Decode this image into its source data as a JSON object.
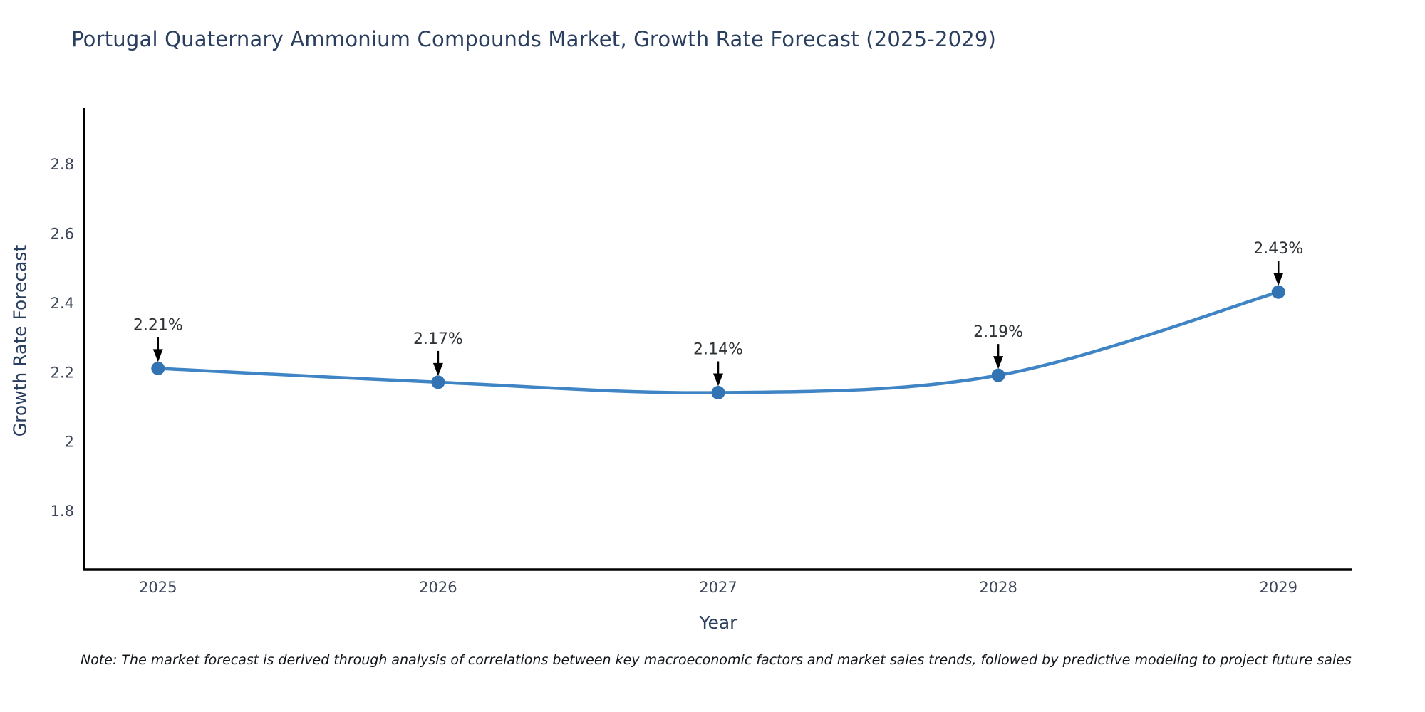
{
  "header": {
    "title": "Portugal Quaternary Ammonium Compounds Market, Growth Rate Forecast (2025-2029)"
  },
  "footnote": "Note: The market forecast is derived through analysis of correlations between key macroeconomic factors and market sales trends, followed by predictive modeling to project future sales",
  "chart_data": {
    "type": "line",
    "title": "Portugal Quaternary Ammonium Compounds Market, Growth Rate Forecast (2025-2029)",
    "x": [
      2025,
      2026,
      2027,
      2028,
      2029
    ],
    "values": [
      2.21,
      2.17,
      2.14,
      2.19,
      2.43
    ],
    "point_labels": [
      "2.21%",
      "2.17%",
      "2.14%",
      "2.19%",
      "2.43%"
    ],
    "xlabel": "Year",
    "ylabel": "Growth Rate Forecast",
    "xtick_labels": [
      "2025",
      "2026",
      "2027",
      "2028",
      "2029"
    ],
    "ytick_values": [
      1.8,
      2.0,
      2.2,
      2.4,
      2.6,
      2.8
    ],
    "ytick_labels": [
      "1.8",
      "2",
      "2.2",
      "2.4",
      "2.6",
      "2.8"
    ],
    "xlim": [
      2024.736,
      2029.264
    ],
    "ylim": [
      1.63,
      2.96
    ],
    "grid": false,
    "legend": "none",
    "line_shape": "spline",
    "colors": {
      "line": "#3f84c4",
      "marker": "#3273b4",
      "axis_line": "#000000",
      "tick_text": "#3b4458",
      "annotation_text": "#2e3338",
      "annotation_arrow": "#000000",
      "title_text": "#2a3f5f",
      "background": "#ffffff"
    }
  }
}
